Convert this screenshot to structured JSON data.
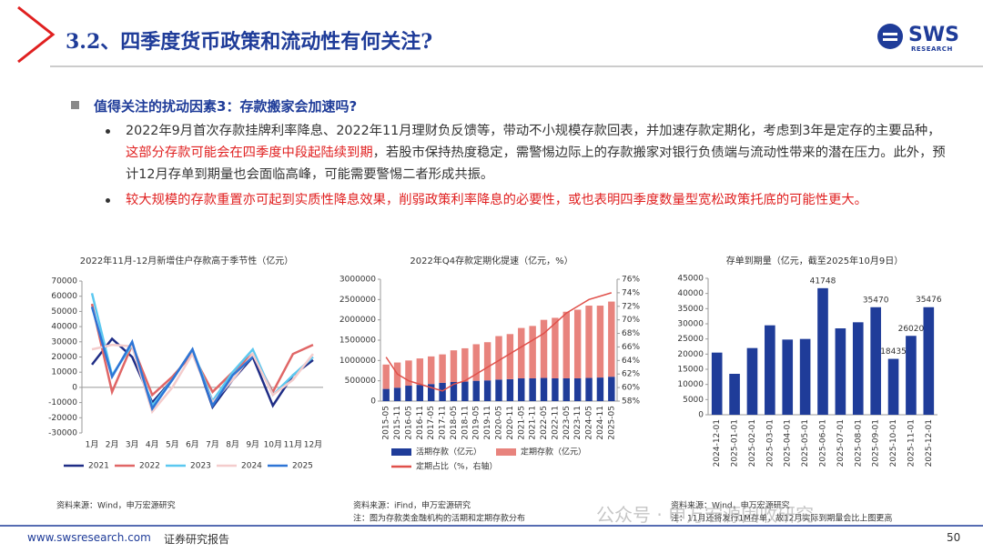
{
  "header": {
    "title": "3.2、四季度货币政策和流动性有何关注?",
    "logo": "SWS",
    "logo_sub": "RESEARCH"
  },
  "section": {
    "heading": "值得关注的扰动因素3：存款搬家会加速吗?",
    "bullets": [
      {
        "parts": [
          "2022年9月首次存款挂牌利率降息、2022年11月理财负反馈等，带动不小规模存款回表，并加速存款定期化，考虑到3年是定存的主要品种，",
          "这部分存款可能会在四季度中段起陆续到期",
          "，若股市保持热度稳定，需警惕边际上的存款搬家对银行负债端与流动性带来的潜在压力。此外，预计12月存单到期量也会面临高峰，可能需要警惕二者形成共振。"
        ]
      },
      {
        "parts": [
          "较大规模的存款重置亦可起到实质性降息效果，削弱政策利率降息的必要性，或也表明四季度数量型宽松政策托底的可能性更大。"
        ]
      }
    ]
  },
  "chart_data": [
    {
      "type": "line",
      "title": "2022年11月-12月新增住户存款高于季节性（亿元）",
      "categories": [
        "1月",
        "2月",
        "3月",
        "4月",
        "5月",
        "6月",
        "7月",
        "8月",
        "9月",
        "10月",
        "11月",
        "12月"
      ],
      "ylim": [
        -30000,
        70000
      ],
      "yticks": [
        -30000,
        -20000,
        -10000,
        0,
        10000,
        20000,
        30000,
        40000,
        50000,
        60000,
        70000
      ],
      "grid": false,
      "series": [
        {
          "name": "2021",
          "color": "#1f2d86",
          "values": [
            15000,
            32000,
            20000,
            -10000,
            5000,
            25000,
            -13000,
            5000,
            20000,
            -12000,
            8000,
            18000
          ]
        },
        {
          "name": "2022",
          "color": "#e06666",
          "values": [
            55000,
            -3000,
            28000,
            -5000,
            7000,
            22000,
            -3000,
            10000,
            22000,
            -3000,
            22000,
            28000
          ]
        },
        {
          "name": "2023",
          "color": "#5bc8f0",
          "values": [
            62000,
            8000,
            28000,
            -12000,
            5000,
            25000,
            -9000,
            10000,
            25000,
            -5000,
            8000,
            20000
          ]
        },
        {
          "name": "2024",
          "color": "#f4cccc",
          "values": [
            25000,
            28000,
            27000,
            -16000,
            0,
            22000,
            -10000,
            5000,
            22000,
            -5000,
            5000,
            22000
          ]
        },
        {
          "name": "2025",
          "color": "#2e75d6",
          "values": [
            53000,
            7000,
            30000,
            -14000,
            5000,
            25000,
            -12000,
            8000,
            20000,
            null,
            null,
            null
          ]
        }
      ],
      "source": "资料来源：Wind，申万宏源研究"
    },
    {
      "type": "bar",
      "title": "2022年Q4存款定期化提速（亿元，%）",
      "stacked": true,
      "categories": [
        "2015-05",
        "2015-11",
        "2016-05",
        "2016-11",
        "2017-05",
        "2017-11",
        "2018-05",
        "2018-11",
        "2019-05",
        "2019-11",
        "2020-05",
        "2020-11",
        "2021-05",
        "2021-11",
        "2022-05",
        "2022-11",
        "2023-05",
        "2023-11",
        "2024-05",
        "2024-11",
        "2025-05"
      ],
      "ylim": [
        0,
        3000000
      ],
      "yticks": [
        0,
        500000,
        1000000,
        1500000,
        2000000,
        2500000,
        3000000
      ],
      "y2lim": [
        58,
        76
      ],
      "y2ticks": [
        {
          "value": 58,
          "label": "58%"
        },
        {
          "value": 60,
          "label": "60%"
        },
        {
          "value": 62,
          "label": "62%"
        },
        {
          "value": 64,
          "label": "64%"
        },
        {
          "value": 66,
          "label": "66%"
        },
        {
          "value": 68,
          "label": "68%"
        },
        {
          "value": 70,
          "label": "70%"
        },
        {
          "value": 72,
          "label": "72%"
        },
        {
          "value": 74,
          "label": "74%"
        },
        {
          "value": 76,
          "label": "76%"
        }
      ],
      "series": [
        {
          "name": "活期存款（亿元）",
          "color": "#1f3c99",
          "values": [
            300000,
            330000,
            380000,
            400000,
            420000,
            450000,
            470000,
            480000,
            500000,
            510000,
            530000,
            540000,
            560000,
            560000,
            570000,
            560000,
            560000,
            560000,
            570000,
            580000,
            600000
          ]
        },
        {
          "name": "定期存款（亿元）",
          "color": "#e8837d",
          "values": [
            600000,
            620000,
            620000,
            650000,
            680000,
            700000,
            780000,
            820000,
            900000,
            940000,
            1070000,
            1110000,
            1240000,
            1290000,
            1430000,
            1490000,
            1640000,
            1690000,
            1780000,
            1770000,
            1850000
          ]
        },
        {
          "name": "定期占比（%，右轴）",
          "color": "#e0504a",
          "type": "line",
          "axis": "y2",
          "values": [
            64.5,
            62,
            61,
            60.5,
            60,
            59.5,
            60.5,
            61,
            62,
            63,
            64,
            65,
            66,
            67,
            68,
            69.5,
            71,
            72,
            73,
            73.5,
            74
          ]
        }
      ],
      "source": "资料来源：iFind，申万宏源研究",
      "note": "注：图为存款类金融机构的活期和定期存款分布"
    },
    {
      "type": "bar",
      "title": "存单到期量（亿元，截至2025年10月9日）",
      "categories": [
        "2024-12-01",
        "2025-01-01",
        "2025-02-01",
        "2025-03-01",
        "2025-04-01",
        "2025-05-01",
        "2025-06-01",
        "2025-07-01",
        "2025-08-01",
        "2025-09-01",
        "2025-10-01",
        "2025-11-01",
        "2025-12-01"
      ],
      "values": [
        20500,
        13500,
        22000,
        29500,
        24800,
        25000,
        41748,
        28500,
        30500,
        35470,
        18435,
        26020,
        35476
      ],
      "value_labels": [
        null,
        null,
        null,
        null,
        null,
        null,
        "41748",
        null,
        null,
        "35470",
        "18435",
        "26020",
        "35476"
      ],
      "color": "#1f3c99",
      "ylim": [
        0,
        45000
      ],
      "yticks": [
        0,
        5000,
        10000,
        15000,
        20000,
        25000,
        30000,
        35000,
        40000,
        45000
      ],
      "source": "资料来源：Wind，申万宏源研究",
      "note": "注：11月还将发行1M存单，故12月实际到期量会比上图更高"
    }
  ],
  "watermark": "公众号 · 申万宏源固收研究",
  "footer": {
    "url": "www.swsresearch.com",
    "label": "证券研究报告",
    "page": "50"
  }
}
